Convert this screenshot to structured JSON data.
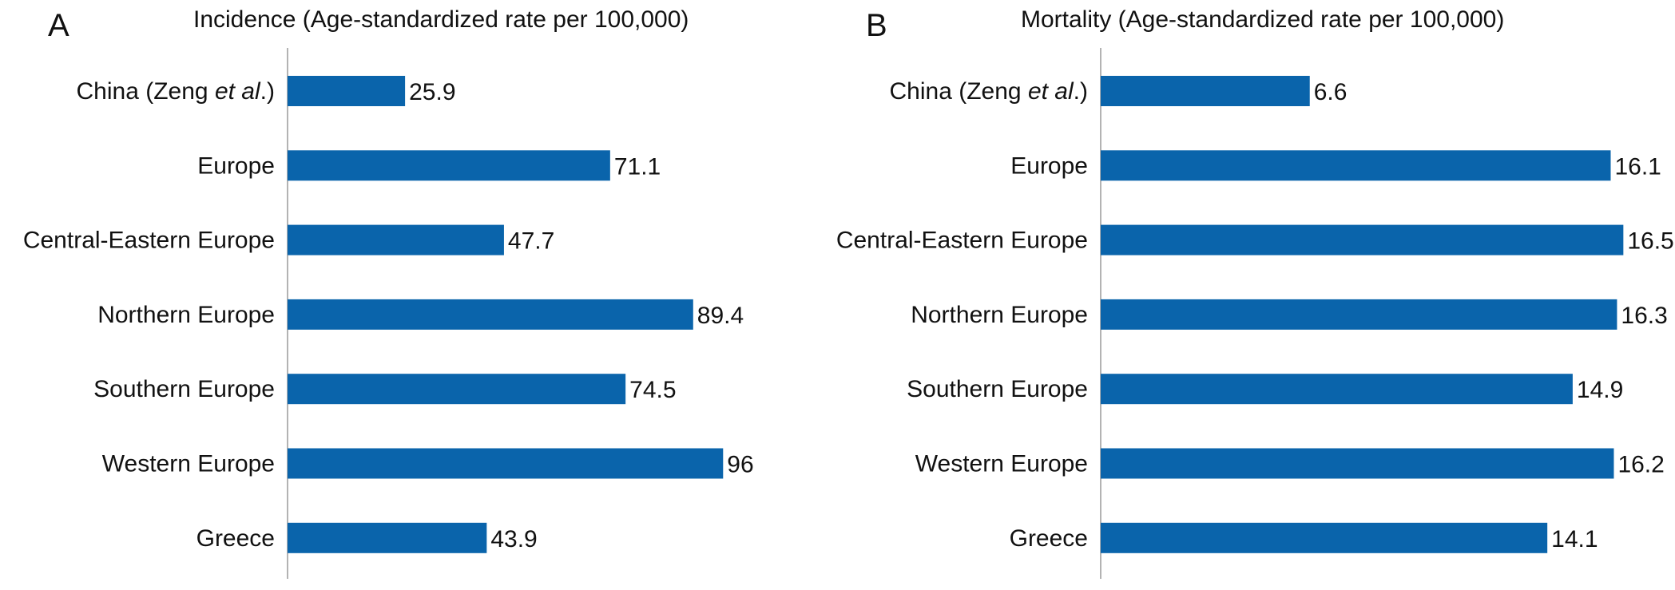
{
  "colors": {
    "bar": "#0a64ab",
    "axis": "#9a9a9a"
  },
  "chart_data": [
    {
      "type": "bar",
      "orientation": "horizontal",
      "panel_label": "A",
      "title": "Incidence (Age-standardized rate per 100,000)",
      "categories": [
        "China (Zeng et al.)",
        "Europe",
        "Central-Eastern Europe",
        "Northern Europe",
        "Southern Europe",
        "Western Europe",
        "Greece"
      ],
      "category_parts": [
        [
          {
            "t": "China (Zeng "
          },
          {
            "t": "et al",
            "i": true
          },
          {
            "t": ".)"
          }
        ],
        [
          {
            "t": "Europe"
          }
        ],
        [
          {
            "t": "Central-Eastern Europe"
          }
        ],
        [
          {
            "t": "Northern Europe"
          }
        ],
        [
          {
            "t": "Southern Europe"
          }
        ],
        [
          {
            "t": "Western Europe"
          }
        ],
        [
          {
            "t": "Greece"
          }
        ]
      ],
      "values": [
        25.9,
        71.1,
        47.7,
        89.4,
        74.5,
        96,
        43.9
      ],
      "value_labels": [
        "25.9",
        "71.1",
        "47.7",
        "89.4",
        "74.5",
        "96",
        "43.9"
      ],
      "xlim": [
        0,
        100
      ],
      "grid": false,
      "legend": "none"
    },
    {
      "type": "bar",
      "orientation": "horizontal",
      "panel_label": "B",
      "title": "Mortality (Age-standardized rate per 100,000)",
      "categories": [
        "China (Zeng et al.)",
        "Europe",
        "Central-Eastern Europe",
        "Northern Europe",
        "Southern Europe",
        "Western Europe",
        "Greece"
      ],
      "category_parts": [
        [
          {
            "t": "China (Zeng "
          },
          {
            "t": "et al",
            "i": true
          },
          {
            "t": ".)"
          }
        ],
        [
          {
            "t": "Europe"
          }
        ],
        [
          {
            "t": "Central-Eastern Europe"
          }
        ],
        [
          {
            "t": "Northern Europe"
          }
        ],
        [
          {
            "t": "Southern Europe"
          }
        ],
        [
          {
            "t": "Western Europe"
          }
        ],
        [
          {
            "t": "Greece"
          }
        ]
      ],
      "values": [
        6.6,
        16.1,
        16.5,
        16.3,
        14.9,
        16.2,
        14.1
      ],
      "value_labels": [
        "6.6",
        "16.1",
        "16.5",
        "16.3",
        "14.9",
        "16.2",
        "14.1"
      ],
      "xlim": [
        0,
        17.5
      ],
      "grid": false,
      "legend": "none"
    }
  ]
}
